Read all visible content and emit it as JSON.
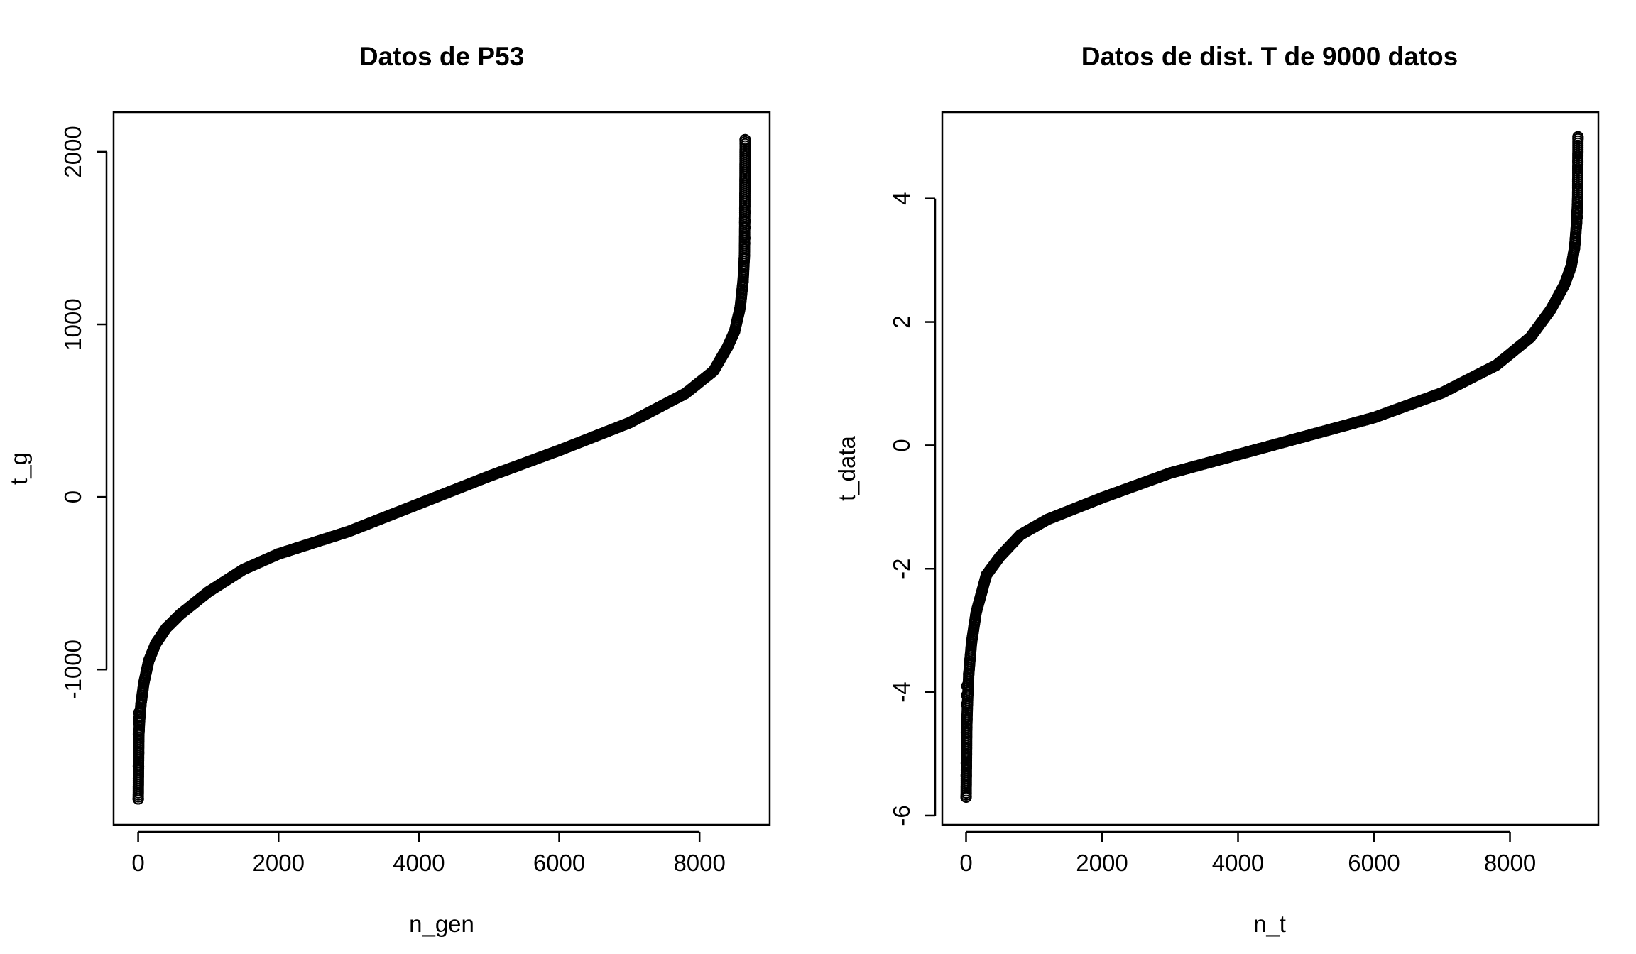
{
  "chart_data": [
    {
      "type": "scatter",
      "title": "Datos de P53",
      "xlabel": "n_gen",
      "ylabel": "t_g",
      "xlim": [
        -350,
        9000
      ],
      "ylim": [
        -1900,
        2230
      ],
      "xticks": [
        0,
        2000,
        4000,
        6000,
        8000
      ],
      "yticks": [
        -1000,
        0,
        1000,
        2000
      ],
      "xtick_labels": [
        "0",
        "2000",
        "4000",
        "6000",
        "8000"
      ],
      "ytick_labels": [
        "-1000",
        "0",
        "1000",
        "2000"
      ],
      "n_points": 8650,
      "curve": [
        [
          1,
          -1750
        ],
        [
          5,
          -1560
        ],
        [
          10,
          -1380
        ],
        [
          20,
          -1300
        ],
        [
          40,
          -1200
        ],
        [
          80,
          -1080
        ],
        [
          150,
          -950
        ],
        [
          250,
          -850
        ],
        [
          400,
          -760
        ],
        [
          600,
          -680
        ],
        [
          1000,
          -550
        ],
        [
          1500,
          -420
        ],
        [
          2000,
          -330
        ],
        [
          3000,
          -200
        ],
        [
          4000,
          -40
        ],
        [
          5000,
          120
        ],
        [
          6000,
          270
        ],
        [
          7000,
          430
        ],
        [
          7800,
          600
        ],
        [
          8200,
          730
        ],
        [
          8400,
          870
        ],
        [
          8500,
          960
        ],
        [
          8580,
          1100
        ],
        [
          8620,
          1250
        ],
        [
          8640,
          1400
        ],
        [
          8645,
          1650
        ],
        [
          8650,
          2070
        ]
      ],
      "outliers": [
        [
          1,
          -1750
        ],
        [
          2,
          -1560
        ],
        [
          3,
          -1375
        ],
        [
          4,
          -1360
        ],
        [
          6,
          -1310
        ],
        [
          8,
          -1280
        ],
        [
          10,
          -1250
        ],
        [
          8644,
          1470
        ],
        [
          8646,
          1500
        ],
        [
          8647,
          1560
        ],
        [
          8648,
          1600
        ],
        [
          8649,
          1650
        ],
        [
          8650,
          2070
        ]
      ],
      "grid": false,
      "legend": "none"
    },
    {
      "type": "scatter",
      "title": "Datos de dist. T de 9000 datos",
      "xlabel": "n_t",
      "ylabel": "t_data",
      "xlim": [
        -350,
        9300
      ],
      "ylim": [
        -6.15,
        5.4
      ],
      "xticks": [
        0,
        2000,
        4000,
        6000,
        8000
      ],
      "yticks": [
        -6,
        -4,
        -2,
        0,
        2,
        4
      ],
      "xtick_labels": [
        "0",
        "2000",
        "4000",
        "6000",
        "8000"
      ],
      "ytick_labels": [
        "-6",
        "-4",
        "-2",
        "0",
        "2",
        "4"
      ],
      "n_points": 9000,
      "curve": [
        [
          1,
          -5.7
        ],
        [
          5,
          -5.2
        ],
        [
          10,
          -4.6
        ],
        [
          20,
          -4.2
        ],
        [
          40,
          -3.7
        ],
        [
          80,
          -3.2
        ],
        [
          150,
          -2.7
        ],
        [
          300,
          -2.1
        ],
        [
          500,
          -1.8
        ],
        [
          800,
          -1.45
        ],
        [
          1200,
          -1.2
        ],
        [
          2000,
          -0.85
        ],
        [
          3000,
          -0.45
        ],
        [
          4000,
          -0.15
        ],
        [
          5000,
          0.15
        ],
        [
          6000,
          0.45
        ],
        [
          7000,
          0.85
        ],
        [
          7800,
          1.3
        ],
        [
          8300,
          1.75
        ],
        [
          8600,
          2.2
        ],
        [
          8800,
          2.6
        ],
        [
          8900,
          2.9
        ],
        [
          8950,
          3.2
        ],
        [
          8980,
          3.6
        ],
        [
          8995,
          4.0
        ],
        [
          9000,
          5.0
        ]
      ],
      "outliers": [
        [
          1,
          -5.7
        ],
        [
          2,
          -5.35
        ],
        [
          3,
          -5.15
        ],
        [
          4,
          -4.65
        ],
        [
          6,
          -4.4
        ],
        [
          8,
          -4.2
        ],
        [
          10,
          -4.05
        ],
        [
          12,
          -3.9
        ],
        [
          8990,
          3.7
        ],
        [
          8993,
          3.85
        ],
        [
          8996,
          3.95
        ],
        [
          8998,
          4.6
        ],
        [
          9000,
          4.97
        ]
      ],
      "grid": false,
      "legend": "none"
    }
  ]
}
